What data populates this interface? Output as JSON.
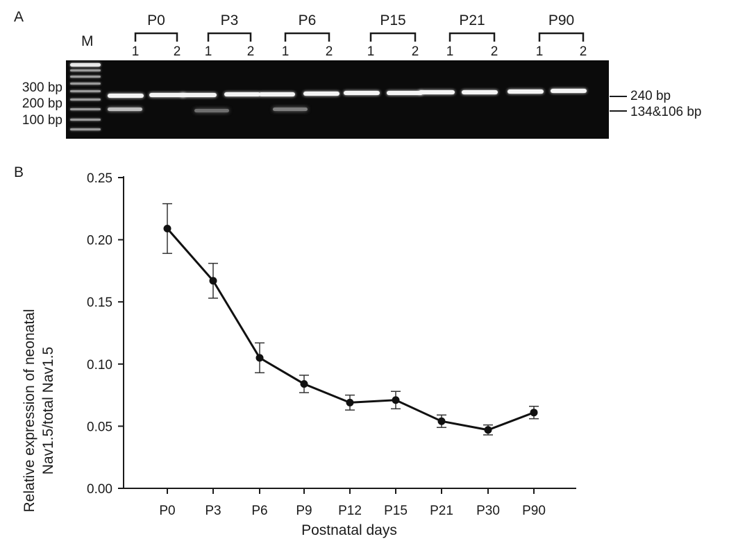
{
  "panel_a": {
    "letter": "A",
    "marker_label": "M",
    "groups": [
      {
        "label": "P0",
        "lanes": [
          "1",
          "2"
        ]
      },
      {
        "label": "P3",
        "lanes": [
          "1",
          "2"
        ]
      },
      {
        "label": "P6",
        "lanes": [
          "1",
          "2"
        ]
      },
      {
        "label": "P15",
        "lanes": [
          "1",
          "2"
        ]
      },
      {
        "label": "P21",
        "lanes": [
          "1",
          "2"
        ]
      },
      {
        "label": "P90",
        "lanes": [
          "1",
          "2"
        ]
      }
    ],
    "ladder_labels": [
      "300 bp",
      "200 bp",
      "100 bp"
    ],
    "band_annotations": [
      "240 bp",
      "134&106 bp"
    ]
  },
  "panel_b": {
    "letter": "B"
  },
  "chart_data": {
    "type": "line",
    "xlabel": "Postnatal days",
    "ylabel_lines": [
      "Relative expression of neonatal",
      "Nav1.5/total Nav1.5"
    ],
    "categories": [
      "P0",
      "P3",
      "P6",
      "P9",
      "P12",
      "P15",
      "P21",
      "P30",
      "P90"
    ],
    "values": [
      0.209,
      0.167,
      0.105,
      0.084,
      0.069,
      0.071,
      0.054,
      0.047,
      0.061
    ],
    "errors": [
      0.02,
      0.014,
      0.012,
      0.007,
      0.006,
      0.007,
      0.005,
      0.004,
      0.005
    ],
    "ylim": [
      0,
      0.25
    ],
    "yticks": [
      "0.00",
      "0.05",
      "0.10",
      "0.15",
      "0.20",
      "0.25"
    ],
    "grid": false,
    "legend": "none"
  }
}
